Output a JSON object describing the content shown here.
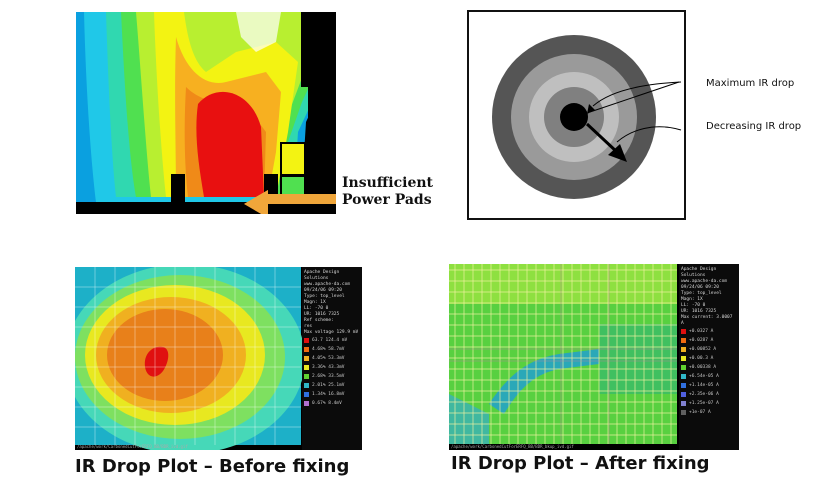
{
  "panel_insufficient_pads": {
    "label_line1": "Insufficient",
    "label_line2": "Power Pads",
    "arrow_color": "#f0a63a"
  },
  "panel_concentric": {
    "max_label": "Maximum IR drop",
    "dec_label": "Decreasing IR drop",
    "ring_colors": [
      "#555555",
      "#9a9a9a",
      "#bfbfbf",
      "#808080",
      "#000000"
    ]
  },
  "panel_before": {
    "legend_header": [
      "Apache Design",
      "Solutions",
      "www.apache-da.com",
      "09/24/06 09:20",
      "Type: top_level",
      "Magn: 1X",
      "LL: -70 0",
      "UR: 1016 7325",
      "Ref scheme:",
      "res",
      "Max voltage 129.9 mV"
    ],
    "legend_rows": [
      {
        "color": "#e01010",
        "text": "63.7   124.4 mV"
      },
      {
        "color": "#f06a10",
        "text": "4.68%  58.7mV"
      },
      {
        "color": "#f0b020",
        "text": "4.05%  53.3mV"
      },
      {
        "color": "#e8e820",
        "text": "3.36%  43.3mV"
      },
      {
        "color": "#60d030",
        "text": "2.68%  33.5mV"
      },
      {
        "color": "#30b8c8",
        "text": "2.01%  25.1mV"
      },
      {
        "color": "#3070e0",
        "text": "1.34%  16.8mV"
      },
      {
        "color": "#b070d0",
        "text": "0.67%  8.4mV"
      }
    ],
    "path": "/apache/work/CarbonedCutForERFQ_BB/BDR_ivd.gif"
  },
  "panel_after": {
    "legend_header": [
      "Apache Design",
      "Solutions",
      "www.apache-da.com",
      "09/24/06 09:20",
      "Type: top_level",
      "Magn: 1X",
      "LL: -70 0",
      "UR: 1016 7325",
      "Max current: 3.0007 A"
    ],
    "legend_rows": [
      {
        "color": "#e01010",
        "text": "+0.0327 A"
      },
      {
        "color": "#f06a10",
        "text": "+0.0287 A"
      },
      {
        "color": "#f0b020",
        "text": "+0.00852 A"
      },
      {
        "color": "#e8e820",
        "text": "+0.00.3 A"
      },
      {
        "color": "#60d030",
        "text": "+0.00338 A"
      },
      {
        "color": "#30b8c8",
        "text": "+6.54e-05 A"
      },
      {
        "color": "#3070e0",
        "text": "+1.14e-05 A"
      },
      {
        "color": "#5060e0",
        "text": "+2.35e-06 A"
      },
      {
        "color": "#8080d0",
        "text": "+1.25e-07 A"
      },
      {
        "color": "#606060",
        "text": "+1e-07 A"
      }
    ],
    "path": "/apache/work/CarbonedCutForERFQ_BB/BDR_bkup_ivd.gif"
  },
  "captions": {
    "before": "IR Drop Plot – Before fixing",
    "after": "IR Drop Plot – After fixing"
  }
}
